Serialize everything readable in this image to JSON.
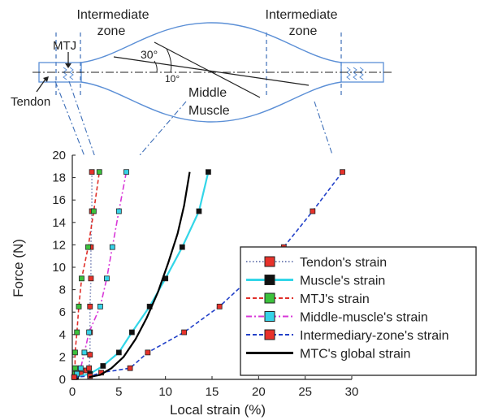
{
  "diagram": {
    "labels": {
      "intermediate_zone_left_1": "Intermediate",
      "intermediate_zone_left_2": "zone",
      "intermediate_zone_right_1": "Intermediate",
      "intermediate_zone_right_2": "zone",
      "mtj": "MTJ",
      "tendon": "Tendon",
      "angle_30": "30°",
      "angle_10": "10°",
      "middle": "Middle",
      "muscle": "Muscle"
    },
    "colors": {
      "outline": "#5b8fd6",
      "dash_line": "#3e6fb8",
      "axis_line": "#222222"
    }
  },
  "chart_data": {
    "type": "line",
    "xlabel": "Local strain (%)",
    "ylabel": "Force (N)",
    "xlim": [
      0,
      30
    ],
    "ylim": [
      0,
      20
    ],
    "xticks": [
      "0",
      "5",
      "10",
      "15",
      "20",
      "25",
      "30"
    ],
    "yticks": [
      "0",
      "2",
      "4",
      "6",
      "8",
      "10",
      "12",
      "14",
      "16",
      "18",
      "20"
    ],
    "legend_position": "bottom-right",
    "series": [
      {
        "name": "Tendon's strain",
        "color": "#7a86b8",
        "marker_fill": "#e8322b",
        "line_style": "dotted",
        "points": [
          [
            0.3,
            0.2
          ],
          [
            0.9,
            0.5
          ],
          [
            1.5,
            0.8
          ],
          [
            1.8,
            1.0
          ],
          [
            1.9,
            2.2
          ],
          [
            1.9,
            4.2
          ],
          [
            1.9,
            6.5
          ],
          [
            2.0,
            9.0
          ],
          [
            2.0,
            11.8
          ],
          [
            2.1,
            15.0
          ],
          [
            2.1,
            18.5
          ]
        ]
      },
      {
        "name": "Muscle's strain",
        "color": "#33d6e8",
        "marker_fill": "#111111",
        "line_style": "solid",
        "points": [
          [
            0.4,
            0.2
          ],
          [
            1.9,
            0.5
          ],
          [
            3.3,
            1.2
          ],
          [
            5.0,
            2.4
          ],
          [
            6.4,
            4.2
          ],
          [
            8.3,
            6.5
          ],
          [
            10.0,
            9.0
          ],
          [
            11.8,
            11.8
          ],
          [
            13.6,
            15.0
          ],
          [
            14.6,
            18.5
          ]
        ]
      },
      {
        "name": "MTJ's strain",
        "color": "#e0302a",
        "marker_fill": "#3cc23c",
        "line_style": "dashed",
        "points": [
          [
            0.2,
            0.2
          ],
          [
            0.3,
            0.5
          ],
          [
            0.3,
            1.0
          ],
          [
            0.3,
            2.4
          ],
          [
            0.5,
            4.2
          ],
          [
            0.7,
            6.5
          ],
          [
            1.0,
            9.0
          ],
          [
            1.7,
            11.8
          ],
          [
            2.3,
            15.0
          ],
          [
            2.9,
            18.5
          ]
        ]
      },
      {
        "name": "Middle-muscle's strain",
        "color": "#d838d8",
        "marker_fill": "#37d3e8",
        "line_style": "dashdot",
        "points": [
          [
            0.2,
            0.2
          ],
          [
            0.5,
            0.5
          ],
          [
            0.9,
            1.0
          ],
          [
            1.3,
            2.4
          ],
          [
            1.8,
            4.2
          ],
          [
            3.0,
            6.5
          ],
          [
            3.7,
            9.0
          ],
          [
            4.3,
            11.8
          ],
          [
            5.0,
            15.0
          ],
          [
            5.8,
            18.5
          ]
        ]
      },
      {
        "name": "Intermediary-zone's strain",
        "color": "#2140c8",
        "marker_fill": "#e8322b",
        "line_style": "dashed",
        "points": [
          [
            0.2,
            0.2
          ],
          [
            1.9,
            0.3
          ],
          [
            3.1,
            0.6
          ],
          [
            6.2,
            1.0
          ],
          [
            8.1,
            2.4
          ],
          [
            12.0,
            4.2
          ],
          [
            15.8,
            6.5
          ],
          [
            22.7,
            11.8
          ],
          [
            25.8,
            15.0
          ],
          [
            29.0,
            18.5
          ]
        ]
      },
      {
        "name": "MTC's global strain",
        "color": "#000000",
        "line_style": "solid",
        "points": [
          [
            1.8,
            0.2
          ],
          [
            3.0,
            0.4
          ],
          [
            4.2,
            1.0
          ],
          [
            5.5,
            2.0
          ],
          [
            6.8,
            3.6
          ],
          [
            8.0,
            5.5
          ],
          [
            9.2,
            7.8
          ],
          [
            10.3,
            10.4
          ],
          [
            11.3,
            13.0
          ],
          [
            12.0,
            15.5
          ],
          [
            12.6,
            18.5
          ]
        ]
      }
    ]
  }
}
